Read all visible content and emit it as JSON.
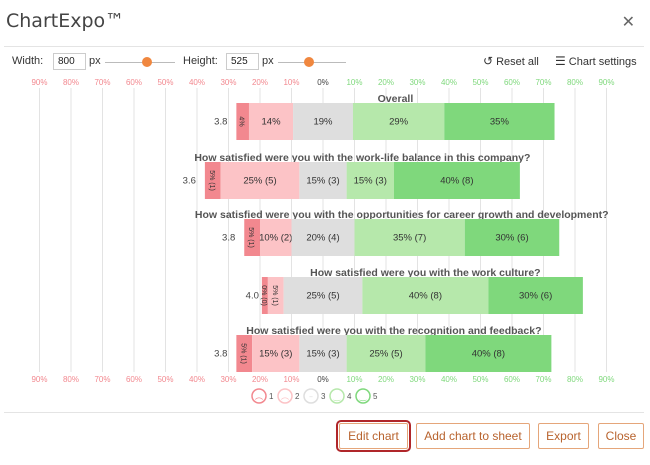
{
  "app": {
    "title": "ChartExpo™",
    "close_glyph": "✕"
  },
  "controls": {
    "width_label": "Width:",
    "width_value": "800",
    "height_label": "Height:",
    "height_value": "525",
    "unit": "px",
    "reset_label": "Reset all",
    "settings_label": "Chart settings"
  },
  "footer": {
    "edit_chart": "Edit chart",
    "add_chart": "Add chart to sheet",
    "export": "Export",
    "close": "Close"
  },
  "colors": {
    "scale1": "#f2888f",
    "scale2": "#fcc3c6",
    "scale3": "#dedede",
    "scale4": "#b6e8ab",
    "scale5": "#7fd87c",
    "neg_axis_text": "#f2888f",
    "pos_axis_text": "#7fd87c",
    "accent": "#f0873f"
  },
  "chart_data": {
    "type": "bar",
    "subtype": "diverging-likert",
    "axis_ticks": [
      "90%",
      "80%",
      "70%",
      "60%",
      "50%",
      "40%",
      "30%",
      "20%",
      "10%",
      "0%",
      "10%",
      "20%",
      "30%",
      "40%",
      "50%",
      "60%",
      "70%",
      "80%",
      "90%"
    ],
    "xlim": [
      -90,
      90
    ],
    "grid": true,
    "legend": [
      "1",
      "2",
      "3",
      "4",
      "5"
    ],
    "legend_placement": "bottom",
    "series_names": [
      "1",
      "2",
      "3",
      "4",
      "5"
    ],
    "rows": [
      {
        "question": "Overall",
        "score": "3.8",
        "values": [
          4,
          14,
          19,
          29,
          35
        ],
        "labels": [
          "4%",
          "14%",
          "19%",
          "29%",
          "35%"
        ]
      },
      {
        "question": "How satisfied were you with the work-life balance in this company?",
        "score": "3.6",
        "values": [
          5,
          25,
          15,
          15,
          40
        ],
        "labels": [
          "5% (1)",
          "25% (5)",
          "15% (3)",
          "15% (3)",
          "40% (8)"
        ]
      },
      {
        "question": "How satisfied were you with the opportunities for career growth and development?",
        "score": "3.8",
        "values": [
          5,
          10,
          20,
          35,
          30
        ],
        "labels": [
          "5% (1)",
          "10% (2)",
          "20% (4)",
          "35% (7)",
          "30% (6)"
        ]
      },
      {
        "question": "How satisfied were you with the work culture?",
        "score": "4.0",
        "values": [
          0,
          5,
          25,
          40,
          30
        ],
        "labels": [
          "0% (0)",
          "5% (1)",
          "25% (5)",
          "40% (8)",
          "30% (6)"
        ]
      },
      {
        "question": "How satisfied were you with the recognition and feedback?",
        "score": "3.8",
        "values": [
          5,
          15,
          15,
          25,
          40
        ],
        "labels": [
          "5% (1)",
          "15% (3)",
          "15% (3)",
          "25% (5)",
          "40% (8)"
        ]
      }
    ]
  }
}
